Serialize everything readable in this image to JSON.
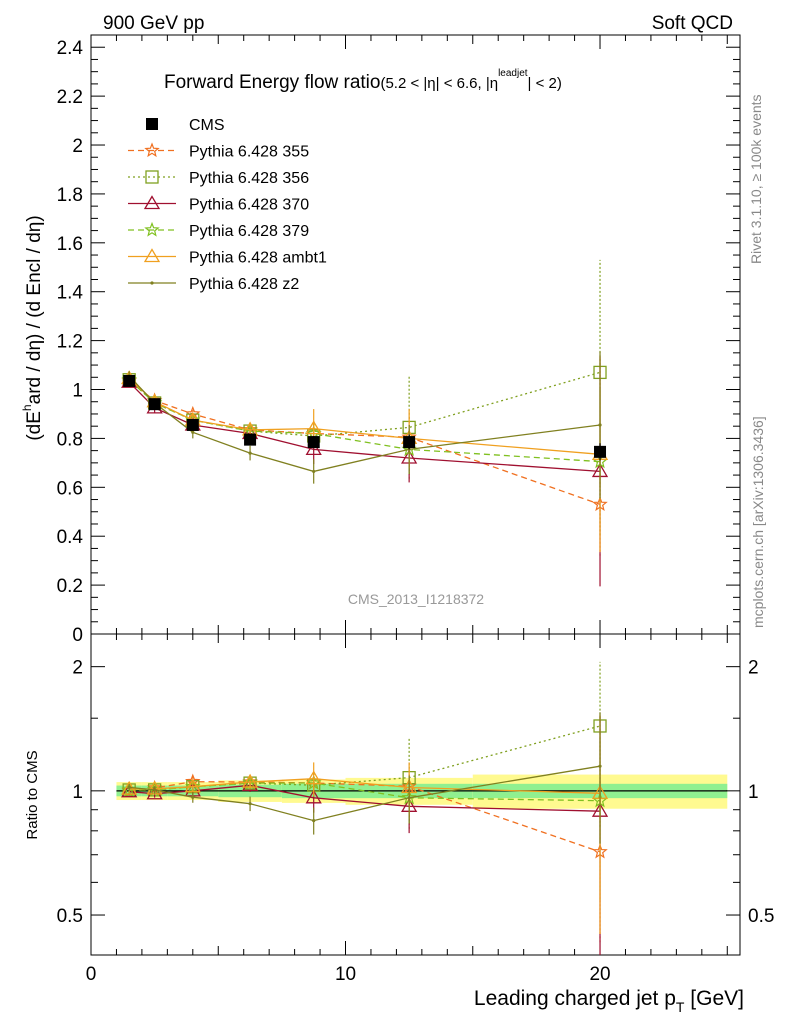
{
  "header": {
    "left": "900 GeV pp",
    "right": "Soft QCD"
  },
  "side": {
    "rivet": "Rivet 3.1.10, ≥ 100k events",
    "mcplots": "mcplots.cern.ch [arXiv:1306.3436]"
  },
  "watermark": "CMS_2013_I1218372",
  "colors": {
    "cms": "#000000",
    "p355": "#f07020",
    "p356": "#80a020",
    "p370": "#a01030",
    "p379": "#80c020",
    "ambt1": "#f0a020",
    "z2": "#808020",
    "band_inner": "#90f090",
    "band_outer": "#fffa90"
  },
  "chart_data": [
    {
      "type": "line",
      "title": "Forward Energy flow ratio",
      "title_cut": "(5.2 < |η| < 6.6, |η",
      "title_sup": "leadjet",
      "title_end": "| < 2)",
      "ylabel_a": "(dE",
      "ylabel_sup": "h",
      "ylabel_b": "ard / dη) / (d Encl / dη)",
      "xlim": [
        0,
        25.5
      ],
      "ylim": [
        0,
        2.45
      ],
      "yticks": [
        0,
        0.2,
        0.4,
        0.6,
        0.8,
        1,
        1.2,
        1.4,
        1.6,
        1.8,
        2,
        2.2,
        2.4
      ],
      "yticklabels": [
        "0",
        "0.2",
        "0.4",
        "0.6",
        "0.8",
        "1",
        "1.2",
        "1.4",
        "1.6",
        "1.8",
        "2",
        "2.2",
        "2.4"
      ],
      "x": [
        1.5,
        2.5,
        4,
        6.25,
        8.75,
        12.5,
        20
      ],
      "data": {
        "name": "CMS",
        "y": [
          1.035,
          0.94,
          0.855,
          0.795,
          0.785,
          0.785,
          0.745
        ],
        "yerr": [
          0.02,
          0.015,
          0.015,
          0.02,
          0.025,
          0.03,
          0.035
        ]
      },
      "series": [
        {
          "name": "Pythia 6.428 355",
          "key": "p355",
          "marker": "star",
          "dash": "6,4",
          "y": [
            1.035,
            0.955,
            0.9,
            0.835,
            0.82,
            0.805,
            0.53
          ],
          "yerr": [
            0.02,
            0.02,
            0.025,
            0.03,
            0.05,
            0.09,
            0.21
          ]
        },
        {
          "name": "Pythia 6.428 356",
          "key": "p356",
          "marker": "square",
          "dash": "2,3",
          "y": [
            1.04,
            0.945,
            0.875,
            0.83,
            0.81,
            0.845,
            1.07
          ],
          "yerr": [
            0.02,
            0.02,
            0.025,
            0.03,
            0.06,
            0.21,
            0.46
          ]
        },
        {
          "name": "Pythia 6.428 370",
          "key": "p370",
          "marker": "triangle",
          "dash": "",
          "y": [
            1.03,
            0.925,
            0.855,
            0.82,
            0.755,
            0.72,
            0.665
          ],
          "yerr": [
            0.02,
            0.02,
            0.02,
            0.03,
            0.06,
            0.1,
            0.47
          ]
        },
        {
          "name": "Pythia 6.428 379",
          "key": "p379",
          "marker": "star",
          "dash": "6,4",
          "y": [
            1.04,
            0.945,
            0.875,
            0.83,
            0.82,
            0.755,
            0.705
          ],
          "yerr": [
            0.02,
            0.02,
            0.025,
            0.03,
            0.05,
            0.1,
            0.3
          ]
        },
        {
          "name": "Pythia 6.428 ambt1",
          "key": "ambt1",
          "marker": "triangle",
          "dash": "",
          "y": [
            1.045,
            0.95,
            0.875,
            0.835,
            0.84,
            0.8,
            0.735
          ],
          "yerr": [
            0.02,
            0.02,
            0.025,
            0.03,
            0.08,
            0.12,
            0.4
          ]
        },
        {
          "name": "Pythia 6.428 z2",
          "key": "z2",
          "marker": "dot",
          "dash": "",
          "y": [
            1.055,
            0.945,
            0.825,
            0.74,
            0.665,
            0.755,
            0.855
          ],
          "yerr": [
            0.02,
            0.02,
            0.025,
            0.03,
            0.05,
            0.1,
            0.3
          ]
        }
      ]
    },
    {
      "type": "line",
      "title": "Ratio to CMS",
      "ylabel": "Ratio to CMS",
      "xlabel": "Leading charged jet p",
      "xlabel_sub": "T",
      "xlabel_unit": " [GeV]",
      "yscale": "log",
      "ylim": [
        0.4,
        2.4
      ],
      "yticks": [
        0.5,
        1,
        2
      ],
      "yticklabels": [
        "0.5",
        "1",
        "2"
      ],
      "xticks": [
        0,
        10,
        20
      ],
      "xticklabels": [
        "0",
        "10",
        "20"
      ],
      "bands": [
        {
          "x0": 1,
          "x1": 2,
          "inner": 0.03,
          "outer": 0.05
        },
        {
          "x0": 2,
          "x1": 3,
          "inner": 0.03,
          "outer": 0.05
        },
        {
          "x0": 3,
          "x1": 5,
          "inner": 0.03,
          "outer": 0.05
        },
        {
          "x0": 5,
          "x1": 7.5,
          "inner": 0.035,
          "outer": 0.06
        },
        {
          "x0": 7.5,
          "x1": 10,
          "inner": 0.04,
          "outer": 0.065
        },
        {
          "x0": 10,
          "x1": 15,
          "inner": 0.04,
          "outer": 0.075
        },
        {
          "x0": 15,
          "x1": 25,
          "inner": 0.04,
          "outer": 0.095
        }
      ]
    }
  ]
}
